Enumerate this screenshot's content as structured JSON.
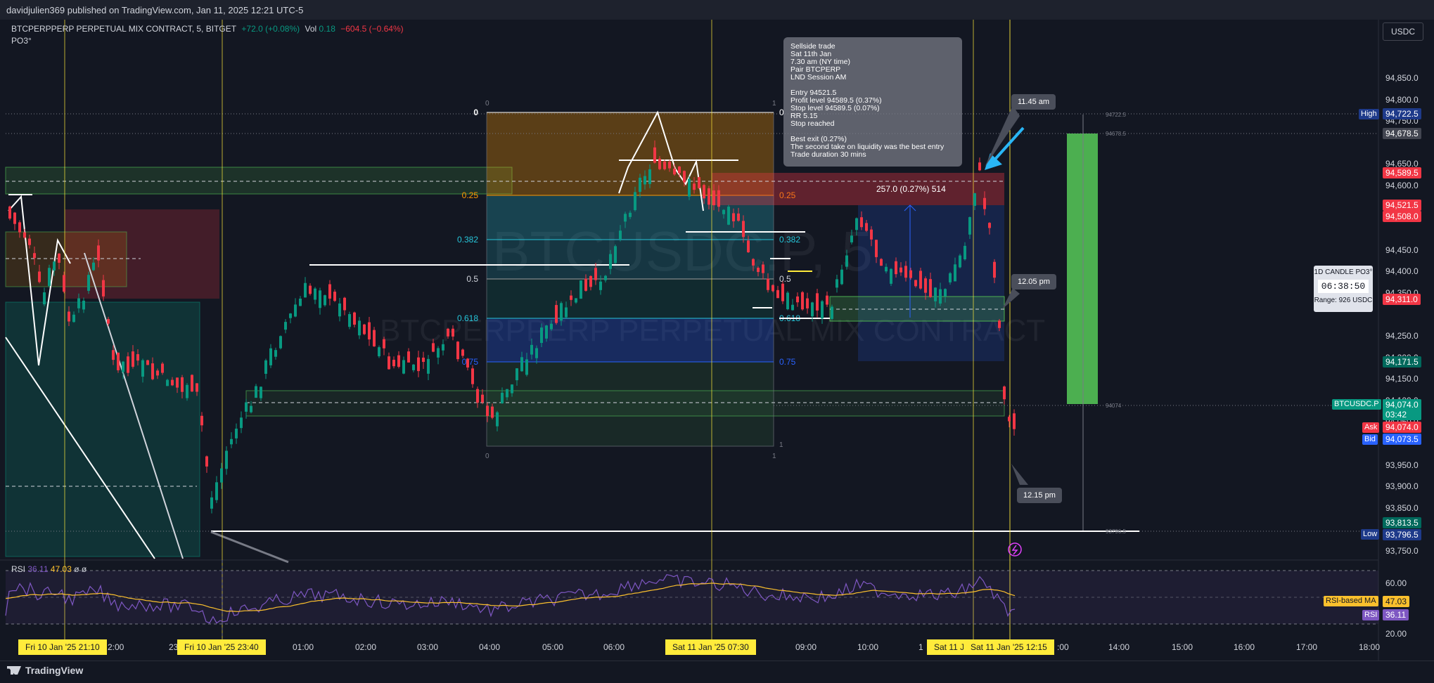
{
  "publisher": "davidjulien369 published on TradingView.com, Jan 11, 2025 12:21 UTC-5",
  "legend": {
    "symbol": "BTCPERPPERP PERPETUAL MIX CONTRACT, 5, BITGET",
    "change": "+72.0 (+0.08%)",
    "vol_label": "Vol",
    "vol_value": "0.18",
    "vol_change": "−604.5 (−0.64%)",
    "indicator": "PO3°"
  },
  "currency": "USDC",
  "watermark_symbol": "BTCUSDC.P, 5",
  "watermark_name": "BTCPERPPERP PERPETUAL MIX CONTRACT",
  "note": {
    "lines": [
      "Sellside trade",
      "Sat 11th Jan",
      "7.30 am (NY time)",
      "Pair BTCPERP",
      "LND Session AM",
      "",
      "Entry 94521.5",
      "Profit level 94589.5 (0.37%)",
      "Stop level 94589.5 (0.07%)",
      "RR 5.15",
      "Stop reached",
      "",
      "Best exit (0.27%)",
      "The second take on liquidity was the best entry",
      "Trade duration 30 mins"
    ]
  },
  "callouts": {
    "c1": "11.45 am",
    "c2": "12.05 pm",
    "c3": "12.15 pm"
  },
  "measure_label": "257.0 (0.27%) 514",
  "candle_box": {
    "title": "1D CANDLE PO3°",
    "timer": "06:38:50",
    "range": "Range: 926 USDC"
  },
  "fib": {
    "left_levels": [
      "0",
      "0.25",
      "0.382",
      "0.5",
      "0.618",
      "0.75"
    ],
    "right_levels": [
      "0",
      "0.25",
      "0.382",
      "0.5",
      "0.618",
      "0.75"
    ],
    "tiny_top_left": "0",
    "tiny_top_right": "1",
    "tiny_bottom_left": "0",
    "tiny_bottom_right": "1",
    "tiny_bottom_mid": "1"
  },
  "right_small_labels": {
    "a": "94722.5",
    "b": "94678.5",
    "c": "94074",
    "d": "93796.5"
  },
  "rsi": {
    "label": "RSI",
    "v1": "36.11",
    "v2": "47.03",
    "v3": "ø",
    "v4": "ø",
    "ma_tag": "RSI-based MA",
    "ma_value": "47.03",
    "rsi_tag": "RSI",
    "rsi_value": "36.11"
  },
  "price_axis": {
    "ticks": [
      "94,850.0",
      "94,800.0",
      "94,750.0",
      "94,650.0",
      "94,600.0",
      "94,550.0",
      "94,450.0",
      "94,400.0",
      "94,350.0",
      "94,250.0",
      "94,200.0",
      "94,150.0",
      "94,100.0",
      "94,050.0",
      "93,950.0",
      "93,900.0",
      "93,850.0",
      "93,750.0"
    ],
    "high_tag": "High",
    "high_value": "94,722.5",
    "tag_94678": "94,678.5",
    "tag_94589": "94,589.5",
    "tag_94521": "94,521.5",
    "tag_94508": "94,508.0",
    "tag_94311": "94,311.0",
    "tag_94171": "94,171.5",
    "symbol_tag": "BTCUSDC.P",
    "last_value": "94,074.0",
    "countdown": "03:42",
    "ask_tag": "Ask",
    "ask_value": "94,074.0",
    "bid_tag": "Bid",
    "bid_value": "94,073.5",
    "tag_93813": "93,813.5",
    "low_tag": "Low",
    "low_value": "93,796.5",
    "rsi_ticks": [
      "60.00",
      "20.00"
    ]
  },
  "time_axis": {
    "labels": [
      "2:00",
      "23",
      "01:00",
      "02:00",
      "03:00",
      "04:00",
      "05:00",
      "06:00",
      "09:00",
      "10:00",
      "1",
      "14:00",
      "15:00",
      "16:00",
      "17:00",
      "18:00",
      ":00"
    ],
    "tags": [
      "Fri 10 Jan '25   21:10",
      "Fri 10 Jan '25   23:40",
      "Sat 11 Jan '25   07:30",
      "Sat 11 J",
      "Sat 11 Jan '25   12:15"
    ]
  },
  "brand": "TradingView",
  "colors": {
    "up": "#089981",
    "down": "#f23645",
    "accent": "#2962ff",
    "yellow": "#ffeb3b",
    "bg": "#131722"
  }
}
